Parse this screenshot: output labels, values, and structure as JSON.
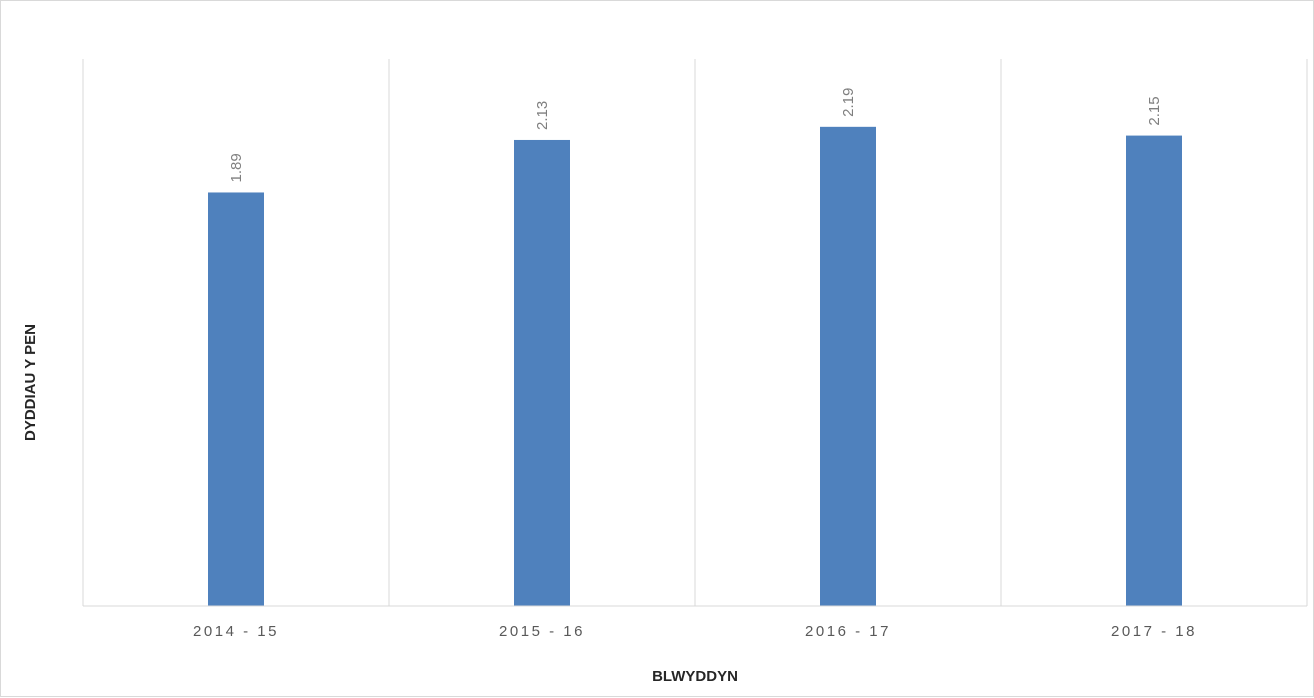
{
  "chart_data": {
    "type": "bar",
    "categories": [
      "2014 - 15",
      "2015 - 16",
      "2016 - 17",
      "2017 - 18"
    ],
    "values": [
      1.89,
      2.13,
      2.19,
      2.15
    ],
    "data_labels": [
      "1.89",
      "2.13",
      "2.19",
      "2.15"
    ],
    "title": "",
    "xlabel": "BLWYDDYN",
    "ylabel": "DYDDIAU Y PEN",
    "ylim": [
      0,
      2.5
    ],
    "grid": "vertical category separators",
    "legend": "none",
    "bar_color": "#4F81BD"
  }
}
